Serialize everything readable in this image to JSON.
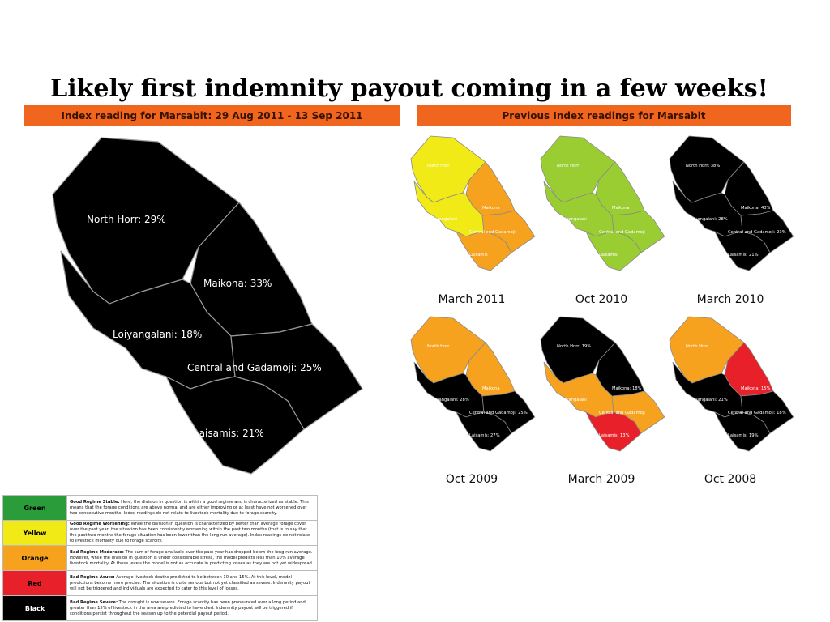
{
  "title": "Likely first indemnity payout coming in a few weeks!",
  "left_header": "Index reading for Marsabit: 29 Aug 2011 - 13 Sep 2011",
  "right_header": "Previous Index readings for Marsabit",
  "main_map": {
    "color": "#000000",
    "labels": {
      "north_horr": "North Horr: 29%",
      "maikona": "Maikona: 33%",
      "loiyangalani": "Loiyangalani: 18%",
      "central": "Central and Gadamoji: 25%",
      "laisamis": "Laisamis: 21%"
    }
  },
  "small_maps": [
    {
      "caption": "March 2011",
      "colors": {
        "north_horr": "#f2ea16",
        "maikona": "#f6a21e",
        "loiyangalani": "#f2ea16",
        "central": "#f6a21e",
        "laisamis": "#f6a21e"
      },
      "labels": {
        "north_horr": "North Horr",
        "maikona": "Maikona",
        "loiyangalani": "Loiyangalani",
        "central": "Central and Gadamoji",
        "laisamis": "Laisamis"
      }
    },
    {
      "caption": "Oct 2010",
      "colors": {
        "north_horr": "#9acd32",
        "maikona": "#9acd32",
        "loiyangalani": "#9acd32",
        "central": "#9acd32",
        "laisamis": "#9acd32"
      },
      "labels": {
        "north_horr": "North Horr",
        "maikona": "Maikona",
        "loiyangalani": "Loiyangalani",
        "central": "Central and Gadamoji",
        "laisamis": "Laisamis"
      }
    },
    {
      "caption": "March 2010",
      "colors": {
        "north_horr": "#000000",
        "maikona": "#000000",
        "loiyangalani": "#000000",
        "central": "#000000",
        "laisamis": "#000000"
      },
      "labels": {
        "north_horr": "North Horr: 38%",
        "maikona": "Maikona: 43%",
        "loiyangalani": "Loiyangalani: 28%",
        "central": "Central and Gadamoji: 23%",
        "laisamis": "Laisamis: 21%"
      }
    },
    {
      "caption": "Oct 2009",
      "colors": {
        "north_horr": "#f6a21e",
        "maikona": "#f6a21e",
        "loiyangalani": "#000000",
        "central": "#000000",
        "laisamis": "#000000"
      },
      "labels": {
        "north_horr": "North Horr",
        "maikona": "Maikona",
        "loiyangalani": "Loiyangalani: 28%",
        "central": "Central and Gadamoji: 25%",
        "laisamis": "Laisamis: 27%"
      }
    },
    {
      "caption": "March 2009",
      "colors": {
        "north_horr": "#000000",
        "maikona": "#000000",
        "loiyangalani": "#f6a21e",
        "central": "#f6a21e",
        "laisamis": "#e8202a"
      },
      "labels": {
        "north_horr": "North Horr: 19%",
        "maikona": "Maikona: 18%",
        "loiyangalani": "Loiyangalani",
        "central": "Central and Gadamoji",
        "laisamis": "Laisamis: 13%"
      }
    },
    {
      "caption": "Oct 2008",
      "colors": {
        "north_horr": "#f6a21e",
        "maikona": "#e8202a",
        "loiyangalani": "#000000",
        "central": "#000000",
        "laisamis": "#000000"
      },
      "labels": {
        "north_horr": "North Horr",
        "maikona": "Maikona: 15%",
        "loiyangalani": "Loiyangalani: 21%",
        "central": "Central and Gadamoji: 18%",
        "laisamis": "Laisamis: 19%"
      }
    }
  ],
  "legend": [
    {
      "name": "Green",
      "color": "#2a9d3a",
      "text_color": "#000000",
      "title": "Good Regime Stable:",
      "text": " Here, the division in question is within a good regime and is characterized as stable. This means that the forage conditions are above normal and are either improving or at least have not worsened over two consecutive months. Index readings do not relate to livestock mortality due to forage scarcity."
    },
    {
      "name": "Yellow",
      "color": "#f2ea16",
      "text_color": "#000000",
      "title": "Good Regime Worsening:",
      "text": " While the division in question is characterized by better than average forage cover over the past year, the situation has been consistently worsening within the past two months (that is to say that the past two months the forage situation has been lower than the long run average). Index readings do not relate to livestock mortality due to forage scarcity."
    },
    {
      "name": "Orange",
      "color": "#f6a21e",
      "text_color": "#000000",
      "title": "Bad Regime Moderate:",
      "text": " The sum of forage available over the past year has dropped below the long-run average. However, while the division in question is under considerable stress, the model predicts less than 10% average livestock mortality. At these levels the model is not as accurate in predicting losses as they are not yet widespread."
    },
    {
      "name": "Red",
      "color": "#e8202a",
      "text_color": "#000000",
      "title": "Bad Regime Acute:",
      "text": " Average livestock deaths predicted to be between 10 and 15%. At this level, model predictions become more precise. The situation is quite serious but not yet classified as severe. Indemnity payout will not be triggered and individuals are expected to cater to this level of losses."
    },
    {
      "name": "Black",
      "color": "#000000",
      "text_color": "#ffffff",
      "title": "Bad Regime Severe:",
      "text": " The drought is now severe. Forage scarcity has been pronounced over a long period and greater than 15% of livestock in the area are predicted to have died. Indemnity payout will be triggered if conditions persist throughout the season up to the potential payout period."
    }
  ]
}
